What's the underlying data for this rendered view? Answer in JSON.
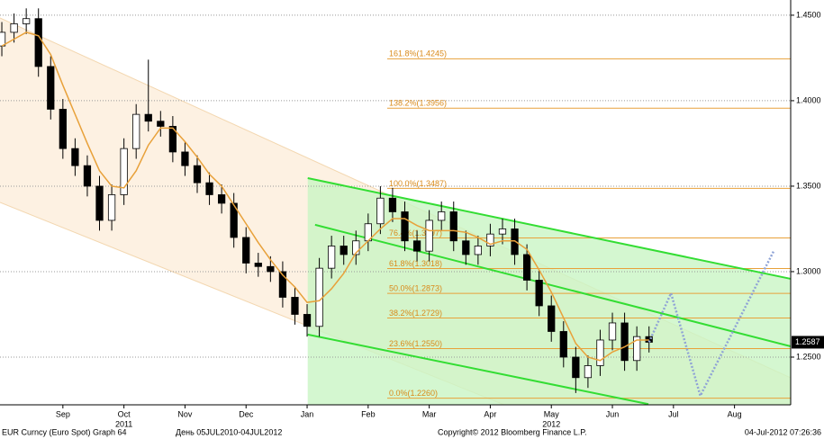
{
  "chart_data": {
    "type": "candlestick",
    "x": [
      -1.0,
      -0.8,
      -0.6,
      -0.4,
      -0.2,
      0,
      0.2,
      0.4,
      0.6,
      0.8,
      1.0,
      1.2,
      1.4,
      1.6,
      1.8,
      2.0,
      2.2,
      2.4,
      2.6,
      2.8,
      3.0,
      3.2,
      3.4,
      3.6,
      3.8,
      4.0,
      4.2,
      4.4,
      4.6,
      4.8,
      5.0,
      5.2,
      5.4,
      5.6,
      5.8,
      6.0,
      6.2,
      6.4,
      6.6,
      6.8,
      7.0,
      7.2,
      7.4,
      7.6,
      7.8,
      8.0,
      8.2,
      8.4,
      8.6,
      8.8,
      9.0,
      9.2,
      9.4,
      9.6
    ],
    "open": [
      1.432,
      1.44,
      1.445,
      1.448,
      1.42,
      1.395,
      1.372,
      1.362,
      1.35,
      1.33,
      1.345,
      1.372,
      1.392,
      1.388,
      1.385,
      1.37,
      1.362,
      1.352,
      1.345,
      1.34,
      1.32,
      1.305,
      1.303,
      1.3,
      1.285,
      1.275,
      1.268,
      1.302,
      1.315,
      1.31,
      1.318,
      1.328,
      1.343,
      1.335,
      1.318,
      1.312,
      1.33,
      1.335,
      1.318,
      1.31,
      1.315,
      1.322,
      1.325,
      1.31,
      1.295,
      1.28,
      1.265,
      1.25,
      1.238,
      1.245,
      1.26,
      1.27,
      1.248,
      1.262
    ],
    "high": [
      1.446,
      1.451,
      1.454,
      1.454,
      1.426,
      1.401,
      1.378,
      1.368,
      1.356,
      1.351,
      1.378,
      1.398,
      1.424,
      1.394,
      1.391,
      1.376,
      1.368,
      1.358,
      1.351,
      1.346,
      1.326,
      1.311,
      1.309,
      1.306,
      1.291,
      1.281,
      1.308,
      1.321,
      1.321,
      1.324,
      1.334,
      1.35,
      1.349,
      1.341,
      1.324,
      1.336,
      1.341,
      1.341,
      1.324,
      1.321,
      1.328,
      1.331,
      1.331,
      1.316,
      1.301,
      1.286,
      1.271,
      1.256,
      1.251,
      1.266,
      1.276,
      1.276,
      1.268,
      1.268
    ],
    "low": [
      1.426,
      1.434,
      1.439,
      1.414,
      1.389,
      1.366,
      1.356,
      1.344,
      1.324,
      1.324,
      1.339,
      1.366,
      1.382,
      1.379,
      1.364,
      1.356,
      1.346,
      1.339,
      1.334,
      1.314,
      1.299,
      1.297,
      1.294,
      1.279,
      1.269,
      1.262,
      1.262,
      1.296,
      1.304,
      1.304,
      1.312,
      1.322,
      1.329,
      1.312,
      1.306,
      1.306,
      1.324,
      1.312,
      1.304,
      1.304,
      1.309,
      1.316,
      1.304,
      1.289,
      1.274,
      1.259,
      1.244,
      1.229,
      1.232,
      1.239,
      1.254,
      1.242,
      1.242,
      1.2527
    ],
    "close": [
      1.44,
      1.445,
      1.448,
      1.42,
      1.395,
      1.372,
      1.362,
      1.35,
      1.33,
      1.345,
      1.372,
      1.392,
      1.388,
      1.385,
      1.37,
      1.362,
      1.352,
      1.345,
      1.34,
      1.32,
      1.305,
      1.303,
      1.3,
      1.285,
      1.275,
      1.268,
      1.302,
      1.315,
      1.31,
      1.318,
      1.328,
      1.343,
      1.335,
      1.318,
      1.312,
      1.33,
      1.335,
      1.318,
      1.31,
      1.315,
      1.322,
      1.325,
      1.31,
      1.295,
      1.28,
      1.265,
      1.25,
      1.238,
      1.245,
      1.26,
      1.27,
      1.248,
      1.262,
      1.2587
    ],
    "moving_average": {
      "color": "#e8a13a",
      "values": [
        1.432,
        1.436,
        1.44,
        1.438,
        1.427,
        1.409,
        1.392,
        1.375,
        1.359,
        1.35,
        1.349,
        1.359,
        1.374,
        1.384,
        1.384,
        1.376,
        1.367,
        1.357,
        1.35,
        1.339,
        1.328,
        1.317,
        1.307,
        1.298,
        1.291,
        1.282,
        1.283,
        1.29,
        1.299,
        1.311,
        1.318,
        1.325,
        1.331,
        1.331,
        1.327,
        1.324,
        1.324,
        1.324,
        1.323,
        1.32,
        1.316,
        1.318,
        1.318,
        1.313,
        1.301,
        1.288,
        1.273,
        1.258,
        1.25,
        1.248,
        1.253,
        1.256,
        1.26,
        1.26
      ]
    },
    "up_color": "#ffffff",
    "down_color": "#000000",
    "xlim": [
      -1.03,
      11.92
    ],
    "xticks": [
      {
        "value": 0,
        "label": "Sep"
      },
      {
        "value": 1,
        "label": "Oct"
      },
      {
        "value": 2,
        "label": "Nov"
      },
      {
        "value": 3,
        "label": "Dec"
      },
      {
        "value": 4,
        "label": "Jan"
      },
      {
        "value": 5,
        "label": "Feb"
      },
      {
        "value": 6,
        "label": "Mar"
      },
      {
        "value": 7,
        "label": "Apr"
      },
      {
        "value": 8,
        "label": "May"
      },
      {
        "value": 9,
        "label": "Jun"
      },
      {
        "value": 10,
        "label": "Jul"
      },
      {
        "value": 11,
        "label": "Aug"
      }
    ],
    "year_labels": [
      {
        "value": 1,
        "label": "2011"
      },
      {
        "value": 8,
        "label": "2012"
      }
    ],
    "ylim": [
      1.2221,
      1.4589
    ],
    "yticks": [
      {
        "value": 1.25,
        "label": "1.2500"
      },
      {
        "value": 1.3,
        "label": "1.3000"
      },
      {
        "value": 1.35,
        "label": "1.3500"
      },
      {
        "value": 1.4,
        "label": "1.4000"
      },
      {
        "value": 1.45,
        "label": "1.4500"
      }
    ],
    "grid": true,
    "fib_color": "#e8a13a",
    "fib_levels": [
      {
        "value": 1.4245,
        "label": "161.8%(1.4245)"
      },
      {
        "value": 1.3956,
        "label": "138.2%(1.3956)"
      },
      {
        "value": 1.3487,
        "label": "100.0%(1.3487)"
      },
      {
        "value": 1.3197,
        "label": "76.4%(1.3197)"
      },
      {
        "value": 1.3018,
        "label": "61.8%(1.3018)"
      },
      {
        "value": 1.2873,
        "label": "50.0%(1.2873)"
      },
      {
        "value": 1.2729,
        "label": "38.2%(1.2729)"
      },
      {
        "value": 1.255,
        "label": "23.6%(1.2550)"
      },
      {
        "value": 1.226,
        "label": "0.0%(1.2260)"
      }
    ],
    "channel_color": "#33dd33",
    "channels": [
      {
        "x": [
          4.01,
          11.92
        ],
        "values": [
          1.3547,
          1.2958
        ]
      },
      {
        "x": [
          4.13,
          11.92
        ],
        "values": [
          1.3274,
          1.2563
        ]
      },
      {
        "x": [
          4.01,
          9.59
        ],
        "values": [
          1.2632,
          1.2225
        ]
      }
    ],
    "projection": {
      "color": "#8fa3d6",
      "x": [
        9.6,
        9.96,
        10.44,
        11.65
      ],
      "values": [
        1.2587,
        1.2874,
        1.2274,
        1.3126
      ]
    },
    "last_price": 1.2587,
    "footer": {
      "left": "EUR Curncy (Euro Spot) Graph 64",
      "range": "День 05JUL2010-04JUL2012",
      "copyright": "Copyright© 2012 Bloomberg Finance L.P.",
      "timestamp": "04-Jul-2012 07:26:36"
    }
  }
}
